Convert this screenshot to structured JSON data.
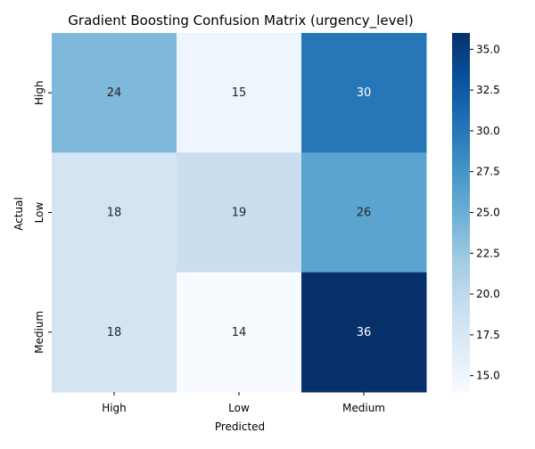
{
  "chart_data": {
    "type": "heatmap",
    "title": "Gradient Boosting Confusion Matrix (urgency_level)",
    "xlabel": "Predicted",
    "ylabel": "Actual",
    "x_categories": [
      "High",
      "Low",
      "Medium"
    ],
    "y_categories": [
      "High",
      "Low",
      "Medium"
    ],
    "values": [
      [
        24,
        15,
        30
      ],
      [
        18,
        19,
        26
      ],
      [
        18,
        14,
        36
      ]
    ],
    "colormap": "Blues",
    "color_range": [
      14,
      36
    ],
    "colorbar_ticks": [
      "15.0",
      "17.5",
      "20.0",
      "22.5",
      "25.0",
      "27.5",
      "30.0",
      "32.5",
      "35.0"
    ],
    "grid": false
  }
}
